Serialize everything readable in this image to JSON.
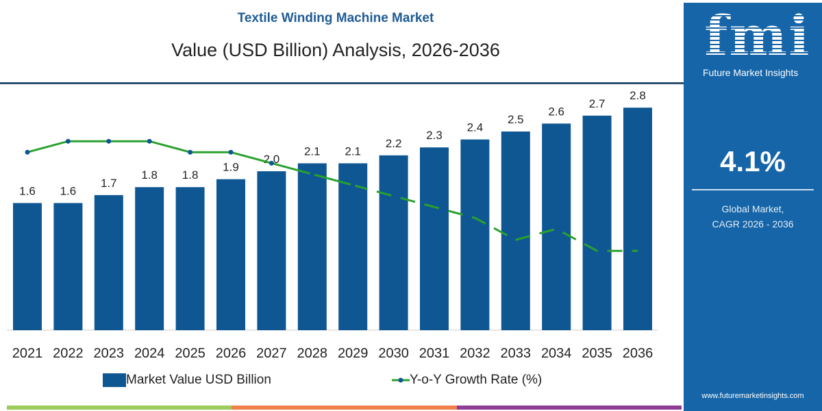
{
  "header": {
    "title": "Textile Winding Machine Market",
    "subtitle": "Value (USD Billion) Analysis, 2026-2036"
  },
  "panel": {
    "logo": "fmi",
    "logo_sub": "Future Market Insights",
    "cagr_value": "4.1%",
    "cagr_label_1": "Global Market,",
    "cagr_label_2": "CAGR 2026 - 2036",
    "website": "www.futuremarketinsights.com"
  },
  "colors": {
    "bar": "#0f5793",
    "line": "#2aa12e",
    "panel": "#1565a8",
    "footer": [
      "#9ccc5a",
      "#f07f4a",
      "#8e3c95"
    ]
  },
  "chart_data": {
    "type": "bar",
    "categories": [
      "2021",
      "2022",
      "2023",
      "2024",
      "2025",
      "2026",
      "2027",
      "2028",
      "2029",
      "2030",
      "2031",
      "2032",
      "2033",
      "2034",
      "2035",
      "2036"
    ],
    "series": [
      {
        "name": "Market Value USD Billion",
        "type": "bar",
        "values": [
          1.6,
          1.6,
          1.7,
          1.8,
          1.8,
          1.9,
          2.0,
          2.1,
          2.1,
          2.2,
          2.3,
          2.4,
          2.5,
          2.6,
          2.7,
          2.8
        ],
        "labels": [
          "1.6",
          "1.6",
          "1.7",
          "1.8",
          "1.8",
          "1.9",
          "2.0",
          "2.1",
          "2.1",
          "2.2",
          "2.3",
          "2.4",
          "2.5",
          "2.6",
          "2.7",
          "2.8"
        ]
      },
      {
        "name": "Y-o-Y Growth Rate (%)",
        "type": "line",
        "values": [
          4.5,
          4.6,
          4.6,
          4.6,
          4.5,
          4.5,
          4.4,
          4.3,
          4.2,
          4.1,
          4.0,
          3.9,
          3.7,
          3.8,
          3.6,
          3.6
        ],
        "solid_through": "2029",
        "dashed_after": "2029"
      }
    ],
    "legend": "bottom",
    "grid": false
  }
}
